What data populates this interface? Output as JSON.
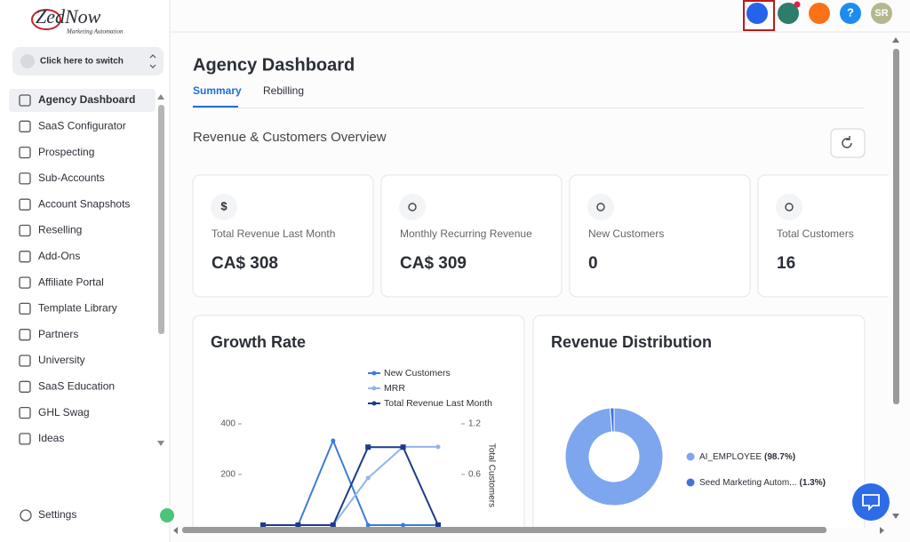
{
  "logo": {
    "brand": "ZedNow",
    "tagline": "Marketing Automation"
  },
  "sidebar": {
    "switch": "Click here to switch",
    "nav": [
      "Agency Dashboard",
      "SaaS Configurator",
      "Prospecting",
      "Sub-Accounts",
      "Account Snapshots",
      "Reselling",
      "Add-Ons",
      "Affiliate Portal",
      "Template Library",
      "Partners",
      "University",
      "SaaS Education",
      "GHL Swag",
      "Ideas"
    ],
    "active": 0,
    "settings": "Settings"
  },
  "topbar": {
    "help": "?",
    "avatar": "SR"
  },
  "page": {
    "title": "Agency Dashboard",
    "tabs": [
      "Summary",
      "Rebilling"
    ],
    "active_tab": 0,
    "section": "Revenue & Customers Overview"
  },
  "stats": [
    {
      "icon": "$",
      "label": "Total Revenue Last Month",
      "value": "CA$ 308"
    },
    {
      "label": "Monthly Recurring Revenue",
      "value": "CA$ 309"
    },
    {
      "label": "New Customers",
      "value": "0"
    },
    {
      "label": "Total Customers",
      "value": "16"
    }
  ],
  "charts": [
    {
      "type": "line",
      "title": "Growth Rate",
      "categories": [
        null,
        null,
        null,
        null,
        null,
        null
      ],
      "ylim": [
        0,
        400
      ],
      "yticks": [
        200,
        400
      ],
      "y2lim": [
        0,
        1.2
      ],
      "y2ticks": [
        0.6,
        1.2
      ],
      "y2label": "Total Customers",
      "series": [
        {
          "name": "New Customers",
          "color": "#3b7dd8",
          "axis": "y2",
          "values": [
            0,
            0,
            1,
            0,
            0,
            0
          ]
        },
        {
          "name": "MRR",
          "color": "#93b4ec",
          "values": [
            0,
            0,
            0,
            186,
            309,
            309
          ]
        },
        {
          "name": "Total Revenue Last Month",
          "color": "#1e3a8a",
          "values": [
            0,
            0,
            0,
            308,
            308,
            0
          ]
        }
      ]
    },
    {
      "type": "pie",
      "title": "Revenue Distribution",
      "categories": [
        "AI_EMPLOYEE",
        "Seed Marketing Autom..."
      ],
      "values": [
        98.7,
        1.3
      ],
      "value_labels": [
        "(98.7%)",
        "(1.3%)"
      ],
      "colors": [
        "#7ea6ef",
        "#3f74db"
      ]
    }
  ]
}
